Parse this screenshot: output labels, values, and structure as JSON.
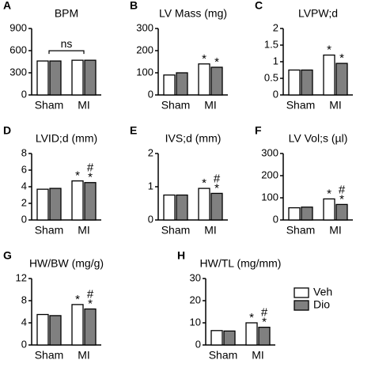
{
  "chart_data": [
    {
      "type": "bar",
      "panel": "A",
      "title": "BPM",
      "categories": [
        "Sham",
        "MI"
      ],
      "ylim": [
        0,
        900
      ],
      "yticks": [
        0,
        300,
        600,
        900
      ],
      "series": [
        {
          "color": "#ffffff",
          "values": [
            460,
            470
          ]
        },
        {
          "color": "#808080",
          "values": [
            460,
            470
          ]
        }
      ],
      "annotation": "ns"
    },
    {
      "type": "bar",
      "panel": "B",
      "title": "LV Mass (mg)",
      "categories": [
        "Sham",
        "MI"
      ],
      "ylim": [
        0,
        300
      ],
      "yticks": [
        0,
        100,
        200,
        300
      ],
      "series": [
        {
          "color": "#ffffff",
          "values": [
            90,
            140
          ],
          "value_labels": [
            null,
            [
              "*"
            ]
          ]
        },
        {
          "color": "#808080",
          "values": [
            100,
            125
          ],
          "value_labels": [
            null,
            [
              "*"
            ]
          ]
        }
      ]
    },
    {
      "type": "bar",
      "panel": "C",
      "title": "LVPW;d",
      "categories": [
        "Sham",
        "MI"
      ],
      "ylim": [
        0,
        2
      ],
      "yticks": [
        0,
        0.5,
        1,
        1.5,
        2
      ],
      "series": [
        {
          "color": "#ffffff",
          "values": [
            0.75,
            1.2
          ],
          "value_labels": [
            null,
            [
              "*"
            ]
          ]
        },
        {
          "color": "#808080",
          "values": [
            0.75,
            0.95
          ],
          "value_labels": [
            null,
            [
              "*"
            ]
          ]
        }
      ]
    },
    {
      "type": "bar",
      "panel": "D",
      "title": "LVID;d (mm)",
      "categories": [
        "Sham",
        "MI"
      ],
      "ylim": [
        0,
        8
      ],
      "yticks": [
        0,
        2,
        4,
        6,
        8
      ],
      "series": [
        {
          "color": "#ffffff",
          "values": [
            3.7,
            4.7
          ],
          "value_labels": [
            null,
            [
              "*"
            ]
          ]
        },
        {
          "color": "#808080",
          "values": [
            3.8,
            4.5
          ],
          "value_labels": [
            null,
            [
              "#",
              "*"
            ]
          ]
        }
      ]
    },
    {
      "type": "bar",
      "panel": "E",
      "title": "IVS;d (mm)",
      "categories": [
        "Sham",
        "MI"
      ],
      "ylim": [
        0,
        2
      ],
      "yticks": [
        0,
        1,
        2
      ],
      "series": [
        {
          "color": "#ffffff",
          "values": [
            0.75,
            0.95
          ],
          "value_labels": [
            null,
            [
              "*"
            ]
          ]
        },
        {
          "color": "#808080",
          "values": [
            0.75,
            0.8
          ],
          "value_labels": [
            null,
            [
              "#",
              "*"
            ]
          ]
        }
      ]
    },
    {
      "type": "bar",
      "panel": "F",
      "title": "LV Vol;s (µl)",
      "categories": [
        "Sham",
        "MI"
      ],
      "ylim": [
        0,
        300
      ],
      "yticks": [
        0,
        100,
        200,
        300
      ],
      "series": [
        {
          "color": "#ffffff",
          "values": [
            55,
            95
          ],
          "value_labels": [
            null,
            [
              "*"
            ]
          ]
        },
        {
          "color": "#808080",
          "values": [
            58,
            70
          ],
          "value_labels": [
            null,
            [
              "#",
              "*"
            ]
          ]
        }
      ]
    },
    {
      "type": "bar",
      "panel": "G",
      "title": "HW/BW (mg/g)",
      "categories": [
        "Sham",
        "MI"
      ],
      "ylim": [
        0,
        12
      ],
      "yticks": [
        0,
        4,
        8,
        12
      ],
      "series": [
        {
          "color": "#ffffff",
          "values": [
            5.5,
            7.3
          ],
          "value_labels": [
            null,
            [
              "*"
            ]
          ]
        },
        {
          "color": "#808080",
          "values": [
            5.3,
            6.5
          ],
          "value_labels": [
            null,
            [
              "#",
              "*"
            ]
          ]
        }
      ]
    },
    {
      "type": "bar",
      "panel": "H",
      "title": "HW/TL (mg/mm)",
      "categories": [
        "Sham",
        "MI"
      ],
      "ylim": [
        0,
        30
      ],
      "yticks": [
        0,
        10,
        20,
        30
      ],
      "series": [
        {
          "color": "#ffffff",
          "values": [
            6.5,
            10
          ],
          "value_labels": [
            null,
            [
              "*"
            ]
          ]
        },
        {
          "color": "#808080",
          "values": [
            6.3,
            8
          ],
          "value_labels": [
            null,
            [
              "#",
              "*"
            ]
          ]
        }
      ]
    }
  ],
  "legend": {
    "labels": [
      "Veh",
      "Dio"
    ],
    "colors": [
      "#ffffff",
      "#808080"
    ]
  }
}
